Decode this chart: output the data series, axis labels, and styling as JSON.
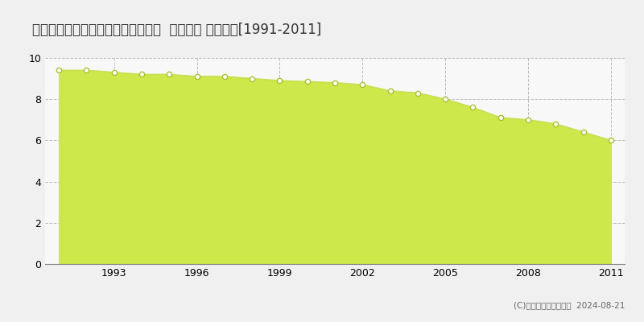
{
  "title": "北海道釧路市貝塚２丁目１２番３２  地価公示 地価推移[1991-2011]",
  "years": [
    1991,
    1992,
    1993,
    1994,
    1995,
    1996,
    1997,
    1998,
    1999,
    2000,
    2001,
    2002,
    2003,
    2004,
    2005,
    2006,
    2007,
    2008,
    2009,
    2010,
    2011
  ],
  "values": [
    9.4,
    9.4,
    9.3,
    9.2,
    9.2,
    9.1,
    9.1,
    9.0,
    8.9,
    8.85,
    8.8,
    8.7,
    8.4,
    8.3,
    8.0,
    7.6,
    7.1,
    7.0,
    6.8,
    6.4,
    6.0
  ],
  "line_color": "#c8e050",
  "fill_color": "#cce84a",
  "fill_alpha": 1.0,
  "marker_color": "#ffffff",
  "marker_edge_color": "#aabf30",
  "background_color": "#f0f0f0",
  "plot_bg_color": "#f8f8f8",
  "grid_color": "#bbbbbb",
  "ylim": [
    0,
    10
  ],
  "yticks": [
    0,
    2,
    4,
    6,
    8,
    10
  ],
  "xlabel_ticks": [
    1993,
    1996,
    1999,
    2002,
    2005,
    2008,
    2011
  ],
  "legend_color": "#cce84a",
  "copyright_text": "(C)土地価格ドットコム  2024-08-21",
  "title_fontsize": 12,
  "tick_fontsize": 9,
  "legend_fontsize": 9
}
